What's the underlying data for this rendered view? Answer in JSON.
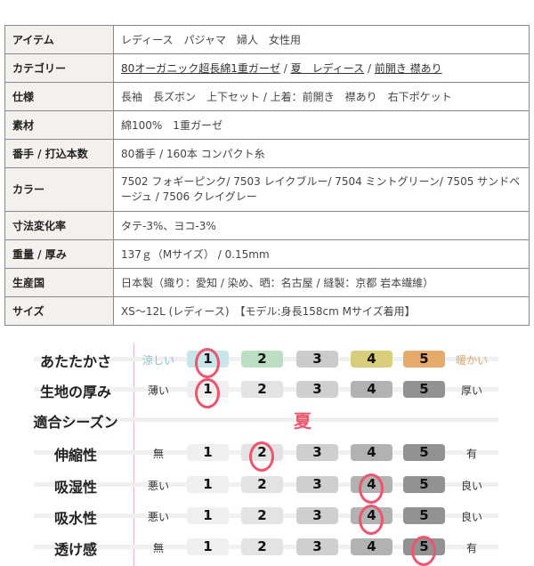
{
  "spec_table": {
    "rows": [
      {
        "label": "アイテム",
        "value": "レディース　パジャマ　婦人　女性用"
      },
      {
        "label": "カテゴリー",
        "links": [
          "80オーガニック超長綿1重ガーゼ",
          "夏　レディース",
          "前開き 襟あり"
        ],
        "separator": " / "
      },
      {
        "label": "仕様",
        "value": "長袖　長ズボン　上下セット / 上着：前開き　襟あり　右下ポケット"
      },
      {
        "label": "素材",
        "value": "綿100%　1重ガーゼ"
      },
      {
        "label": "番手 / 打込本数",
        "value": "80番手 / 160本 コンパクト糸"
      },
      {
        "label": "カラー",
        "value": "7502 フォギーピンク/ 7503 レイクブルー/ 7504 ミントグリーン/ 7505 サンドベージュ / 7506 クレイグレー"
      },
      {
        "label": "寸法変化率",
        "value": "タテ-3%、ヨコ-3%"
      },
      {
        "label": "重量 / 厚み",
        "value": "137ｇ（Mサイズ） / 0.15mm"
      },
      {
        "label": "生産国",
        "value": "日本製（織り：愛知 / 染め、晒：名古屋 / 縫製：京都 岩本繊維）"
      },
      {
        "label": "サイズ",
        "value": "XS～12L (レディース)　【モデル:身長158cm Mサイズ着用】"
      }
    ]
  },
  "ratings": {
    "scale": [
      "1",
      "2",
      "3",
      "4",
      "5"
    ],
    "highlight_color": "#e9566e",
    "warmth_colors": [
      "#c8e5ec",
      "#bcdfc4",
      "#cbcbcb",
      "#d8cd7c",
      "#e6aa6a"
    ],
    "gray_colors": [
      "#efefef",
      "#e3e3e3",
      "#cfcfcf",
      "#b2b2b2",
      "#929292"
    ],
    "warmth_word_colors": {
      "left": "#7fc0cf",
      "right": "#e6a467"
    },
    "items": [
      {
        "label": "あたたかさ",
        "left": "涼しい",
        "right": "暖かい",
        "selected": 1,
        "palette": "warmth"
      },
      {
        "label": "生地の厚み",
        "left": "薄い",
        "right": "厚い",
        "selected": 1,
        "palette": "gray"
      },
      {
        "label": "適合シーズン",
        "season": "夏"
      },
      {
        "label": "伸縮性",
        "left": "無",
        "right": "有",
        "selected": 2,
        "palette": "gray"
      },
      {
        "label": "吸湿性",
        "left": "悪い",
        "right": "良い",
        "selected": 4,
        "palette": "gray"
      },
      {
        "label": "吸水性",
        "left": "悪い",
        "right": "良い",
        "selected": 4,
        "palette": "gray"
      },
      {
        "label": "透け感",
        "left": "無",
        "right": "有",
        "selected": 5,
        "palette": "gray"
      }
    ]
  }
}
